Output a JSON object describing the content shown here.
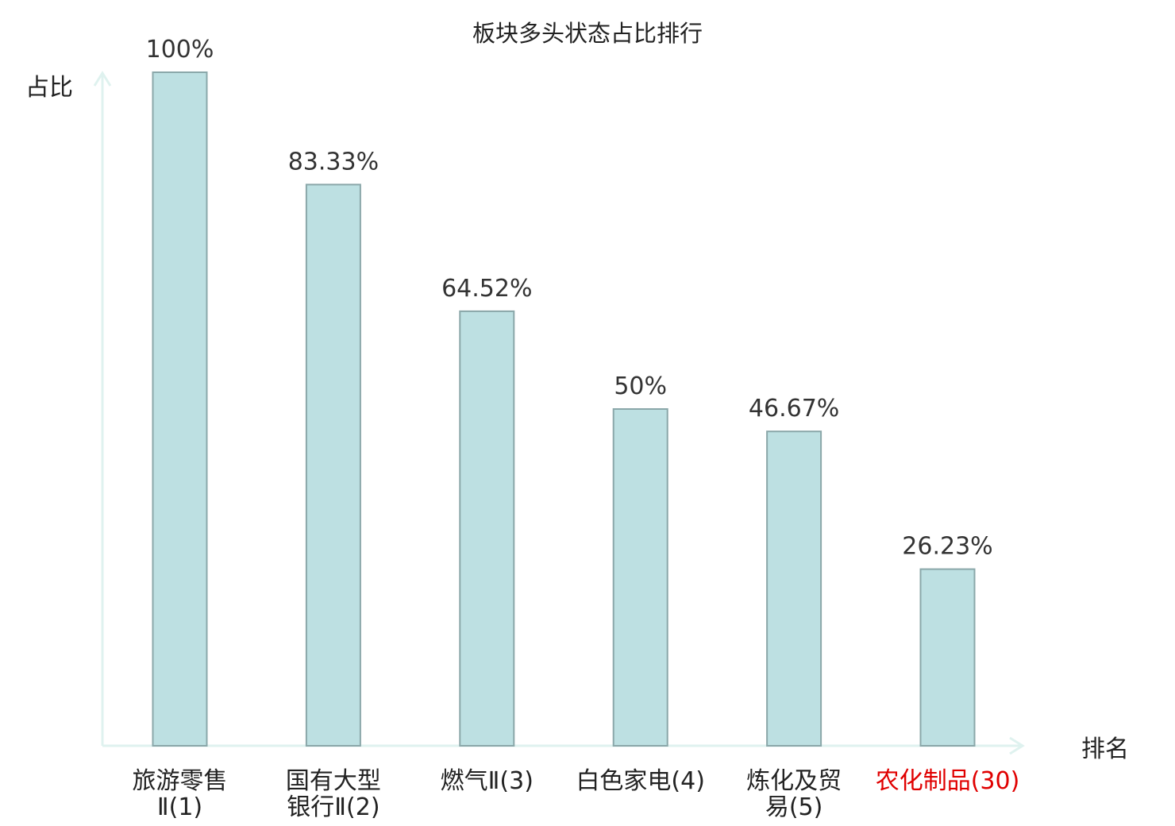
{
  "colors": {
    "bar_fill": "#bde0e2",
    "bar_stroke": "#8aa7a9",
    "axis": "#dff2ef",
    "text": "#222222",
    "highlight": "#e00000"
  },
  "chart_data": {
    "type": "bar",
    "title": "板块多头状态占比排行",
    "ylabel": "占比",
    "xlabel": "排名",
    "ylim": [
      0,
      100
    ],
    "grid": false,
    "categories": [
      {
        "lines": [
          "旅游零售",
          "Ⅱ(1)"
        ],
        "highlight": false
      },
      {
        "lines": [
          "国有大型",
          "银行Ⅱ(2)"
        ],
        "highlight": false
      },
      {
        "lines": [
          "燃气Ⅱ(3)"
        ],
        "highlight": false
      },
      {
        "lines": [
          "白色家电(4)"
        ],
        "highlight": false
      },
      {
        "lines": [
          "炼化及贸",
          "易(5)"
        ],
        "highlight": false
      },
      {
        "lines": [
          "农化制品(30)"
        ],
        "highlight": true
      }
    ],
    "values": [
      100,
      83.33,
      64.52,
      50,
      46.67,
      26.23
    ],
    "value_labels": [
      "100%",
      "83.33%",
      "64.52%",
      "50%",
      "46.67%",
      "26.23%"
    ]
  }
}
